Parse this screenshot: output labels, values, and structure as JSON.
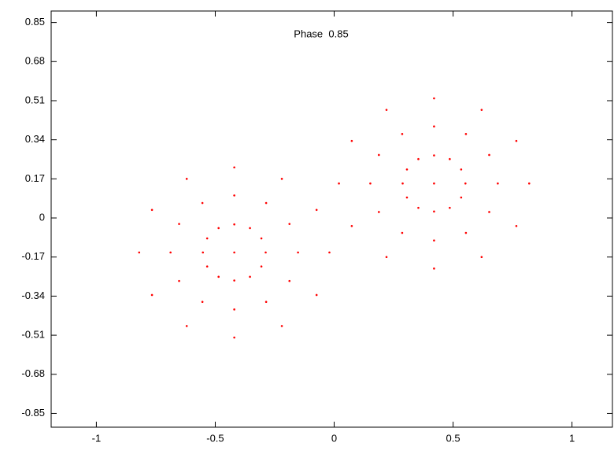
{
  "chart_data": {
    "type": "scatter",
    "annotation": "Phase  0.85",
    "color": "#ff0000",
    "xlim": [
      -1.19,
      1.17
    ],
    "ylim": [
      -0.91,
      0.9
    ],
    "xticks": [
      -1,
      -0.5,
      0,
      0.5,
      1
    ],
    "yticks": [
      0.85,
      0.68,
      0.51,
      0.34,
      0.17,
      0,
      -0.17,
      -0.34,
      -0.51,
      -0.68,
      -0.85
    ],
    "x": [
      -0.02,
      -0.074,
      -0.22,
      -0.42,
      -0.62,
      -0.766,
      -0.82,
      -0.766,
      -0.62,
      -0.42,
      -0.22,
      -0.074,
      -0.152,
      -0.188,
      -0.286,
      -0.42,
      -0.554,
      -0.652,
      -0.688,
      -0.652,
      -0.554,
      -0.42,
      -0.286,
      -0.188,
      -0.288,
      -0.306,
      -0.354,
      -0.42,
      -0.486,
      -0.534,
      -0.552,
      -0.534,
      -0.486,
      -0.42,
      -0.354,
      -0.306,
      -0.42,
      0.02,
      0.074,
      0.22,
      0.42,
      0.62,
      0.766,
      0.82,
      0.766,
      0.62,
      0.42,
      0.22,
      0.074,
      0.152,
      0.188,
      0.286,
      0.42,
      0.554,
      0.652,
      0.688,
      0.652,
      0.554,
      0.42,
      0.286,
      0.188,
      0.288,
      0.306,
      0.354,
      0.42,
      0.486,
      0.534,
      0.552,
      0.534,
      0.486,
      0.42,
      0.354,
      0.306,
      0.42
    ],
    "values": [
      -0.15,
      0.035,
      0.17,
      0.22,
      0.17,
      0.035,
      -0.15,
      -0.335,
      -0.47,
      -0.52,
      -0.47,
      -0.335,
      -0.15,
      -0.026,
      0.065,
      0.098,
      0.065,
      -0.026,
      -0.15,
      -0.274,
      -0.365,
      -0.398,
      -0.365,
      -0.274,
      -0.15,
      -0.089,
      -0.044,
      -0.028,
      -0.044,
      -0.089,
      -0.15,
      -0.211,
      -0.256,
      -0.272,
      -0.256,
      -0.211,
      -0.15,
      0.15,
      -0.035,
      -0.17,
      -0.22,
      -0.17,
      -0.035,
      0.15,
      0.335,
      0.47,
      0.52,
      0.47,
      0.335,
      0.15,
      0.026,
      -0.065,
      -0.098,
      -0.065,
      0.026,
      0.15,
      0.274,
      0.365,
      0.398,
      0.365,
      0.274,
      0.15,
      0.089,
      0.044,
      0.028,
      0.044,
      0.089,
      0.15,
      0.211,
      0.256,
      0.272,
      0.256,
      0.211,
      0.15
    ]
  }
}
